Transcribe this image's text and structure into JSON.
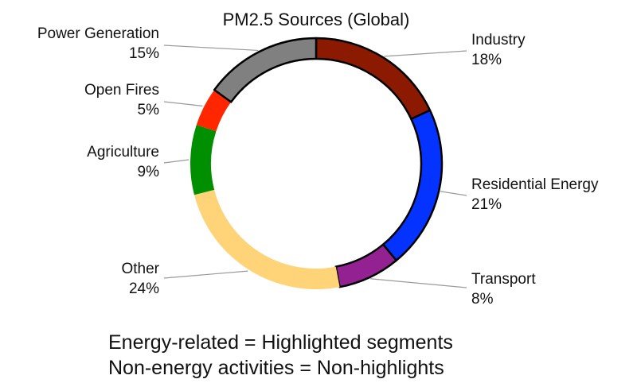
{
  "chart_data": {
    "type": "pie",
    "variant": "donut",
    "title": "PM2.5 Sources (Global)",
    "slices": [
      {
        "label": "Industry",
        "value": 18,
        "value_label": "18%",
        "color": "#8B1A00",
        "highlighted": true
      },
      {
        "label": "Residential Energy",
        "value": 21,
        "value_label": "21%",
        "color": "#0433FF",
        "highlighted": true
      },
      {
        "label": "Transport",
        "value": 8,
        "value_label": "8%",
        "color": "#942192",
        "highlighted": true
      },
      {
        "label": "Other",
        "value": 24,
        "value_label": "24%",
        "color": "#FFD479",
        "highlighted": false
      },
      {
        "label": "Agriculture",
        "value": 9,
        "value_label": "9%",
        "color": "#008F00",
        "highlighted": false
      },
      {
        "label": "Open Fires",
        "value": 5,
        "value_label": "5%",
        "color": "#FF2600",
        "highlighted": false
      },
      {
        "label": "Power Generation",
        "value": 15,
        "value_label": "15%",
        "color": "#808080",
        "highlighted": true
      }
    ],
    "notes": [
      "Energy-related = Highlighted segments",
      "Non-energy activities = Non-highlights"
    ]
  }
}
